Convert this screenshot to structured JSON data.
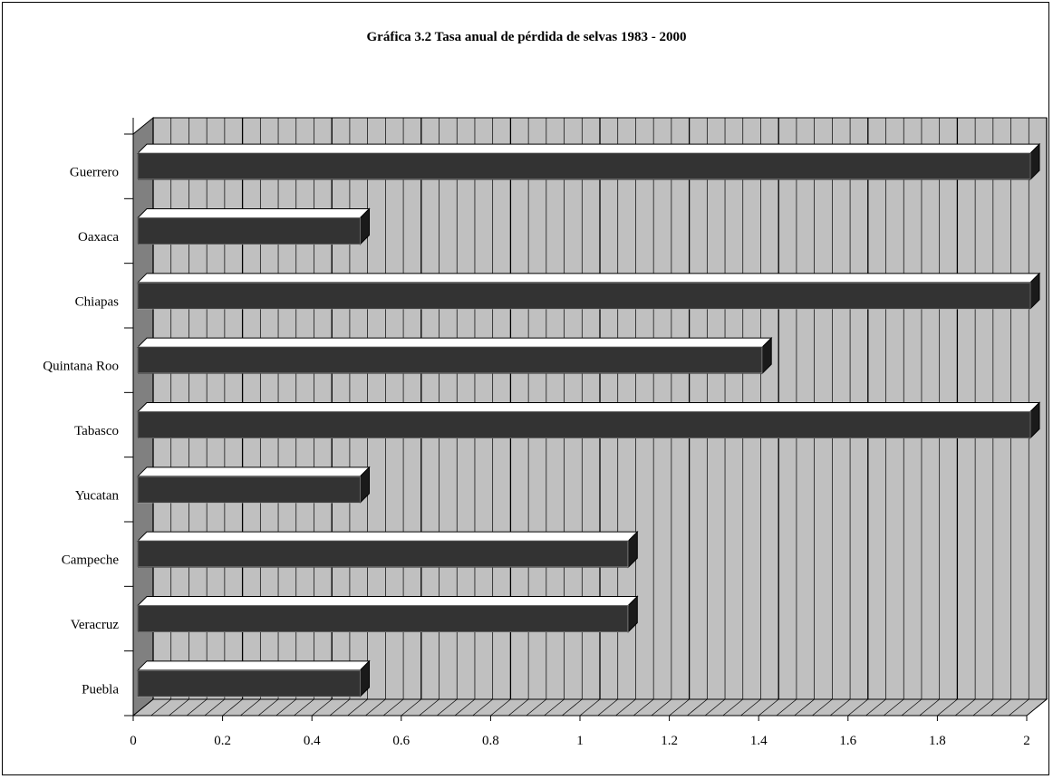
{
  "chart_data": {
    "type": "bar",
    "orientation": "horizontal",
    "style": "3d",
    "title": "Gráfica 3.2 Tasa anual de pérdida de selvas 1983 - 2000",
    "xlabel": "",
    "ylabel": "",
    "categories": [
      "Guerrero",
      "Oaxaca",
      "Chiapas",
      "Quintana Roo",
      "Tabasco",
      "Yucatan",
      "Campeche",
      "Veracruz",
      "Puebla"
    ],
    "values": [
      2.0,
      0.5,
      2.0,
      1.4,
      2.0,
      0.5,
      1.1,
      1.1,
      0.5
    ],
    "xlim": [
      0,
      2
    ],
    "xticks": [
      "0",
      "0.2",
      "0.4",
      "0.6",
      "0.8",
      "1",
      "1.2",
      "1.4",
      "1.6",
      "1.8",
      "2"
    ],
    "grid": true,
    "legend": "none",
    "colors": {
      "bar": "#333333",
      "bar_top": "#ffffff",
      "bar_side": "#1a1a1a",
      "back_wall": "#c0c0c0",
      "side_wall": "#808080",
      "floor": "#c0c0c0"
    }
  }
}
